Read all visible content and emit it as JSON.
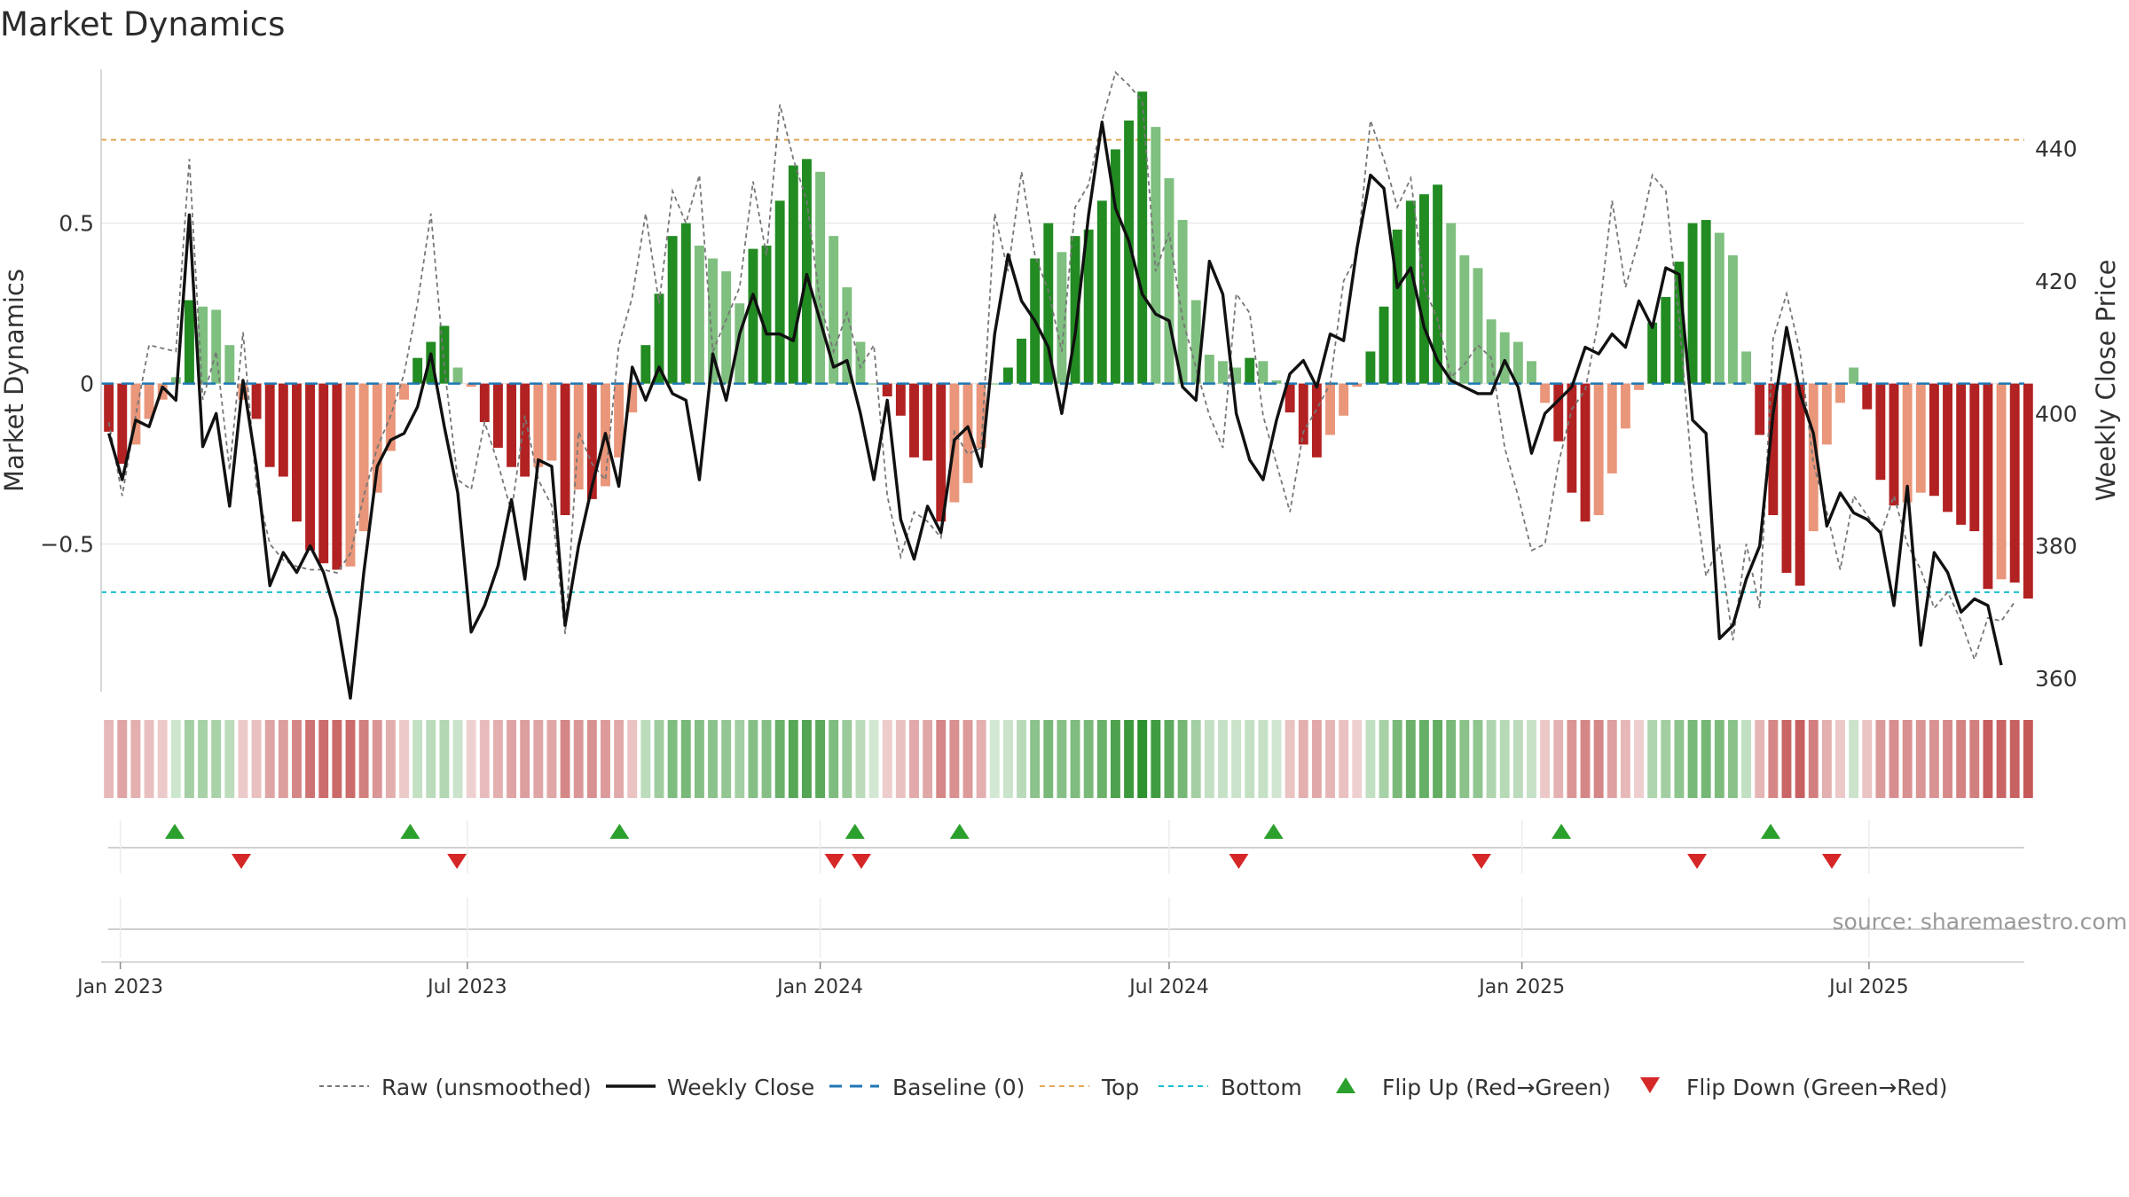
{
  "chart_data": {
    "type": "bar",
    "title": "Market Dynamics",
    "ylabel": "Market Dynamics",
    "ylabel_right": "Weekly Close Price",
    "ylim": [
      -0.96,
      0.98
    ],
    "ylim_right": [
      358,
      452
    ],
    "yticks": [
      -0.5,
      0,
      0.5
    ],
    "ytick_labels": [
      "−0.5",
      "0",
      "0.5"
    ],
    "yticks_right": [
      360,
      380,
      400,
      420,
      440
    ],
    "top_level": 0.76,
    "bottom_level": -0.65,
    "x_start": "2022-12-22",
    "x_end": "2025-09-20",
    "week_start": "2022-12-26",
    "xtick_labels": [
      "Jan 2023",
      "Jul 2023",
      "Jan 2024",
      "Jul 2024",
      "Jan 2025",
      "Jul 2025"
    ],
    "xtick_dates": [
      "2023-01-01",
      "2023-07-01",
      "2024-01-01",
      "2024-07-01",
      "2025-01-01",
      "2025-07-01"
    ],
    "series": [
      {
        "name": "Market Dynamics",
        "values": [
          -0.15,
          -0.25,
          -0.19,
          -0.11,
          -0.05,
          0.02,
          0.26,
          0.24,
          0.23,
          0.12,
          -0.05,
          -0.11,
          -0.26,
          -0.29,
          -0.43,
          -0.52,
          -0.56,
          -0.58,
          -0.57,
          -0.46,
          -0.34,
          -0.21,
          -0.05,
          0.08,
          0.13,
          0.18,
          0.05,
          -0.01,
          -0.12,
          -0.2,
          -0.26,
          -0.29,
          -0.26,
          -0.24,
          -0.41,
          -0.33,
          -0.36,
          -0.32,
          -0.23,
          -0.09,
          0.12,
          0.28,
          0.46,
          0.5,
          0.43,
          0.39,
          0.35,
          0.25,
          0.42,
          0.43,
          0.57,
          0.68,
          0.7,
          0.66,
          0.46,
          0.3,
          0.13,
          0.0,
          -0.04,
          -0.1,
          -0.23,
          -0.24,
          -0.43,
          -0.37,
          -0.31,
          -0.2,
          0.0,
          0.05,
          0.14,
          0.39,
          0.5,
          0.41,
          0.46,
          0.48,
          0.57,
          0.73,
          0.82,
          0.91,
          0.8,
          0.64,
          0.51,
          0.26,
          0.09,
          0.07,
          0.05,
          0.08,
          0.07,
          0.01,
          -0.09,
          -0.19,
          -0.23,
          -0.16,
          -0.1,
          -0.01,
          0.1,
          0.24,
          0.48,
          0.57,
          0.59,
          0.62,
          0.5,
          0.4,
          0.36,
          0.2,
          0.16,
          0.13,
          0.07,
          -0.06,
          -0.18,
          -0.34,
          -0.43,
          -0.41,
          -0.28,
          -0.14,
          -0.02,
          0.19,
          0.27,
          0.38,
          0.5,
          0.51,
          0.47,
          0.4,
          0.1,
          -0.16,
          -0.41,
          -0.59,
          -0.63,
          -0.46,
          -0.19,
          -0.06,
          0.05,
          -0.08,
          -0.3,
          -0.38,
          -0.37,
          -0.34,
          -0.35,
          -0.4,
          -0.44,
          -0.46,
          -0.64,
          -0.61,
          -0.62,
          -0.67
        ]
      },
      {
        "name": "Weekly Close",
        "values": [
          397,
          390,
          399,
          398,
          404,
          402,
          430,
          395,
          400,
          386,
          405,
          392,
          374,
          379,
          376,
          380,
          376,
          369,
          357,
          376,
          392,
          396,
          397,
          401,
          409,
          398,
          388,
          367,
          371,
          377,
          387,
          375,
          393,
          392,
          368,
          380,
          389,
          397,
          389,
          407,
          402,
          407,
          403,
          402,
          390,
          409,
          402,
          412,
          418,
          412,
          412,
          411,
          421,
          414,
          407,
          408,
          400,
          390,
          402,
          384,
          378,
          386,
          382,
          396,
          398,
          392,
          412,
          424,
          417,
          414,
          410,
          400,
          412,
          430,
          444,
          431,
          426,
          418,
          415,
          414,
          404,
          402,
          423,
          418,
          400,
          393,
          390,
          399,
          406,
          408,
          404,
          412,
          411,
          425,
          436,
          434,
          419,
          422,
          413,
          408,
          405,
          404,
          403,
          403,
          408,
          404,
          394,
          400,
          402,
          404,
          410,
          409,
          412,
          410,
          417,
          413,
          422,
          421,
          399,
          397,
          366,
          368,
          375,
          380,
          400,
          413,
          403,
          397,
          383,
          388,
          385,
          384,
          382,
          371,
          389,
          365,
          379,
          376,
          370,
          372,
          371,
          362
        ]
      },
      {
        "name": "Raw (unsmoothed)",
        "values": [
          -0.12,
          -0.35,
          -0.1,
          0.12,
          0.11,
          0.1,
          0.7,
          -0.05,
          0.1,
          -0.27,
          0.16,
          -0.32,
          -0.5,
          -0.55,
          -0.57,
          -0.58,
          -0.58,
          -0.59,
          -0.53,
          -0.35,
          -0.2,
          -0.1,
          0.03,
          0.25,
          0.53,
          0.05,
          -0.3,
          -0.33,
          -0.12,
          -0.25,
          -0.4,
          -0.1,
          -0.3,
          -0.38,
          -0.78,
          -0.15,
          -0.25,
          -0.3,
          0.12,
          0.27,
          0.53,
          0.25,
          0.6,
          0.5,
          0.65,
          0.1,
          0.2,
          0.3,
          0.63,
          0.4,
          0.87,
          0.7,
          0.57,
          0.25,
          0.1,
          0.22,
          0.05,
          0.12,
          -0.35,
          -0.54,
          -0.4,
          -0.43,
          -0.48,
          -0.15,
          -0.22,
          -0.2,
          0.53,
          0.35,
          0.66,
          0.4,
          0.29,
          0.1,
          0.55,
          0.62,
          0.82,
          0.97,
          0.93,
          0.88,
          0.35,
          0.47,
          0.2,
          0.05,
          -0.1,
          -0.2,
          0.28,
          0.22,
          -0.1,
          -0.25,
          -0.4,
          -0.15,
          -0.08,
          0.0,
          0.32,
          0.4,
          0.82,
          0.7,
          0.55,
          0.64,
          0.3,
          0.2,
          0.02,
          0.06,
          0.12,
          0.08,
          -0.2,
          -0.35,
          -0.52,
          -0.5,
          -0.25,
          -0.08,
          -0.02,
          0.2,
          0.57,
          0.3,
          0.45,
          0.65,
          0.6,
          0.2,
          -0.3,
          -0.6,
          -0.5,
          -0.8,
          -0.5,
          -0.7,
          0.14,
          0.28,
          0.1,
          -0.25,
          -0.4,
          -0.58,
          -0.35,
          -0.41,
          -0.47,
          -0.35,
          -0.5,
          -0.58,
          -0.7,
          -0.65,
          -0.74,
          -0.86,
          -0.73,
          -0.74,
          -0.68
        ]
      }
    ],
    "flip_up_weeks": [
      2,
      11,
      19,
      28,
      32,
      44,
      55,
      63
    ],
    "flip_down_weeks": [
      5,
      13,
      27,
      28,
      42,
      51,
      59,
      64
    ],
    "legend_position": "bottom",
    "legend": {
      "raw": "Raw (unsmoothed)",
      "close": "Weekly Close",
      "baseline": "Baseline (0)",
      "top": "Top",
      "bottom": "Bottom",
      "flip_up": "Flip Up (Red→Green)",
      "flip_down": "Flip Down (Green→Red)"
    },
    "source": "source: sharemaestro.com",
    "colors": {
      "green_strong": "#228b22",
      "green_light": "#7fbf7f",
      "red_strong": "#b22222",
      "red_light": "#e9967a",
      "close_line": "#111111",
      "raw_line": "#777777",
      "baseline": "#1f77b4",
      "top": "#e3a857",
      "bottom": "#17becf",
      "flip_up": "#2ca02c",
      "flip_down": "#d62728"
    }
  }
}
